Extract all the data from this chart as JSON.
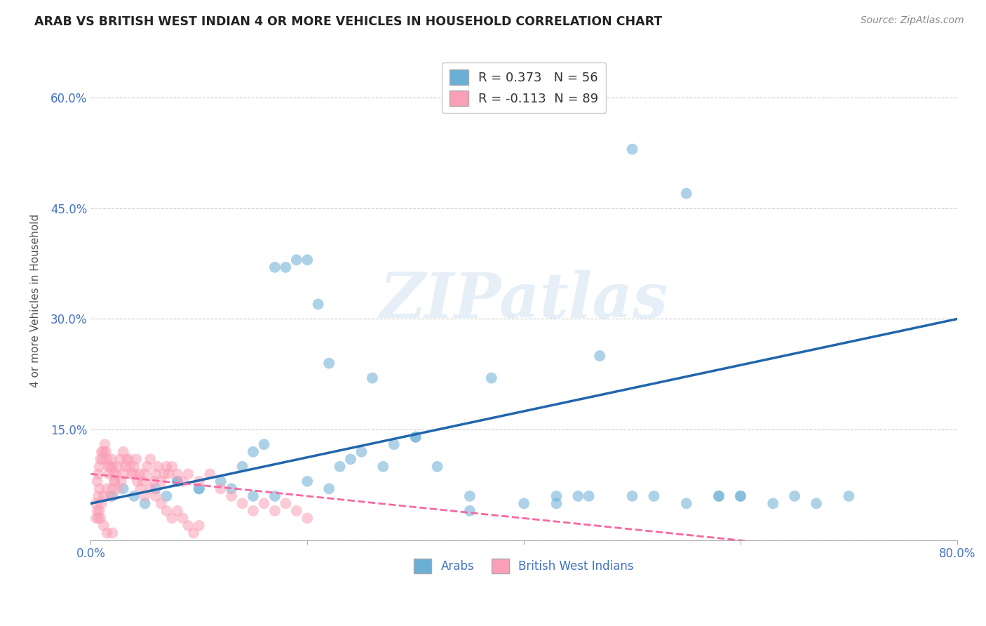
{
  "title": "ARAB VS BRITISH WEST INDIAN 4 OR MORE VEHICLES IN HOUSEHOLD CORRELATION CHART",
  "source": "Source: ZipAtlas.com",
  "ylabel": "4 or more Vehicles in Household",
  "xlim": [
    0.0,
    0.8
  ],
  "ylim": [
    0.0,
    0.65
  ],
  "watermark": "ZIPatlas",
  "arab_R": 0.373,
  "arab_N": 56,
  "bwi_R": -0.113,
  "bwi_N": 89,
  "arab_color": "#6baed6",
  "bwi_color": "#fa9fb5",
  "arab_line_color": "#2166ac",
  "bwi_line_color": "#f768a1",
  "legend_label_arab": "Arabs",
  "legend_label_bwi": "British West Indians",
  "arab_x": [
    0.02,
    0.03,
    0.04,
    0.05,
    0.06,
    0.07,
    0.08,
    0.1,
    0.12,
    0.13,
    0.14,
    0.15,
    0.16,
    0.17,
    0.18,
    0.19,
    0.2,
    0.21,
    0.22,
    0.23,
    0.24,
    0.25,
    0.26,
    0.27,
    0.28,
    0.3,
    0.32,
    0.35,
    0.37,
    0.4,
    0.43,
    0.45,
    0.47,
    0.5,
    0.52,
    0.55,
    0.58,
    0.6,
    0.63,
    0.65,
    0.67,
    0.7,
    0.5,
    0.55,
    0.58,
    0.6,
    0.43,
    0.46,
    0.3,
    0.35,
    0.2,
    0.22,
    0.15,
    0.17,
    0.1,
    0.08
  ],
  "arab_y": [
    0.06,
    0.07,
    0.06,
    0.05,
    0.07,
    0.06,
    0.08,
    0.07,
    0.08,
    0.07,
    0.1,
    0.12,
    0.13,
    0.37,
    0.37,
    0.38,
    0.38,
    0.32,
    0.24,
    0.1,
    0.11,
    0.12,
    0.22,
    0.1,
    0.13,
    0.14,
    0.1,
    0.04,
    0.22,
    0.05,
    0.05,
    0.06,
    0.25,
    0.06,
    0.06,
    0.05,
    0.06,
    0.06,
    0.05,
    0.06,
    0.05,
    0.06,
    0.53,
    0.47,
    0.06,
    0.06,
    0.06,
    0.06,
    0.14,
    0.06,
    0.08,
    0.07,
    0.06,
    0.06,
    0.07,
    0.08
  ],
  "bwi_x": [
    0.005,
    0.007,
    0.008,
    0.01,
    0.012,
    0.015,
    0.018,
    0.02,
    0.022,
    0.025,
    0.028,
    0.03,
    0.032,
    0.035,
    0.038,
    0.04,
    0.042,
    0.045,
    0.048,
    0.05,
    0.052,
    0.055,
    0.058,
    0.06,
    0.062,
    0.065,
    0.068,
    0.07,
    0.072,
    0.075,
    0.08,
    0.085,
    0.09,
    0.1,
    0.11,
    0.12,
    0.13,
    0.14,
    0.15,
    0.16,
    0.17,
    0.18,
    0.19,
    0.2,
    0.006,
    0.007,
    0.008,
    0.009,
    0.01,
    0.011,
    0.012,
    0.013,
    0.014,
    0.015,
    0.016,
    0.017,
    0.018,
    0.019,
    0.02,
    0.021,
    0.022,
    0.023,
    0.025,
    0.027,
    0.03,
    0.033,
    0.036,
    0.04,
    0.043,
    0.046,
    0.05,
    0.055,
    0.06,
    0.065,
    0.07,
    0.075,
    0.08,
    0.085,
    0.09,
    0.095,
    0.1,
    0.005,
    0.006,
    0.007,
    0.008,
    0.009,
    0.012,
    0.015,
    0.02
  ],
  "bwi_y": [
    0.05,
    0.06,
    0.07,
    0.05,
    0.06,
    0.07,
    0.06,
    0.07,
    0.08,
    0.07,
    0.08,
    0.09,
    0.1,
    0.11,
    0.09,
    0.1,
    0.11,
    0.09,
    0.08,
    0.09,
    0.1,
    0.11,
    0.08,
    0.09,
    0.1,
    0.08,
    0.09,
    0.1,
    0.09,
    0.1,
    0.09,
    0.08,
    0.09,
    0.08,
    0.09,
    0.07,
    0.06,
    0.05,
    0.04,
    0.05,
    0.04,
    0.05,
    0.04,
    0.03,
    0.08,
    0.09,
    0.1,
    0.11,
    0.12,
    0.11,
    0.12,
    0.13,
    0.12,
    0.11,
    0.1,
    0.09,
    0.1,
    0.11,
    0.1,
    0.09,
    0.08,
    0.09,
    0.1,
    0.11,
    0.12,
    0.11,
    0.1,
    0.09,
    0.08,
    0.07,
    0.06,
    0.07,
    0.06,
    0.05,
    0.04,
    0.03,
    0.04,
    0.03,
    0.02,
    0.01,
    0.02,
    0.03,
    0.04,
    0.03,
    0.04,
    0.03,
    0.02,
    0.01,
    0.01
  ]
}
